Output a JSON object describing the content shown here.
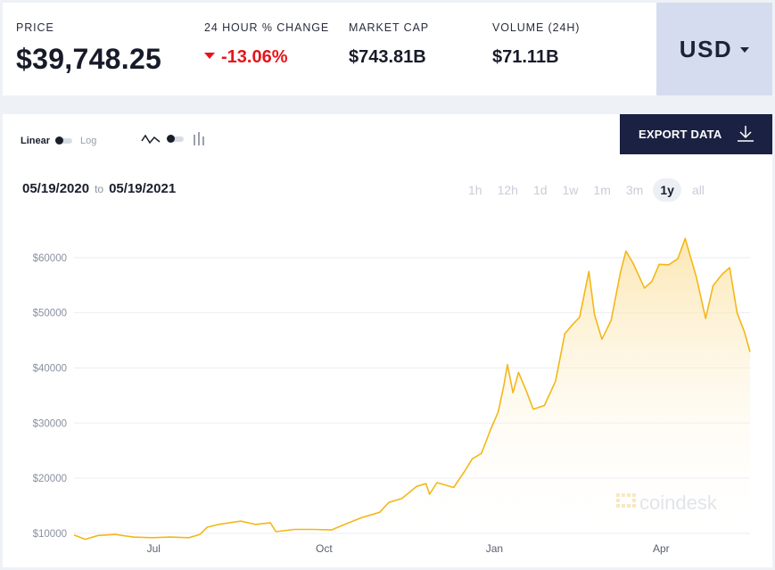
{
  "stats": {
    "price": {
      "label": "PRICE",
      "value": "$39,748.25"
    },
    "change": {
      "label": "24 HOUR % CHANGE",
      "value": "-13.06%"
    },
    "market_cap": {
      "label": "MARKET CAP",
      "value": "$743.81B"
    },
    "volume": {
      "label": "VOLUME (24H)",
      "value": "$71.11B"
    }
  },
  "currency": {
    "selected": "USD"
  },
  "controls": {
    "scale_linear": "Linear",
    "scale_log": "Log",
    "export_label": "EXPORT DATA",
    "range_start": "05/19/2020",
    "range_to": "to",
    "range_end": "05/19/2021",
    "periods": [
      "1h",
      "12h",
      "1d",
      "1w",
      "1m",
      "3m",
      "1y",
      "all"
    ],
    "active_period": "1y"
  },
  "watermark": "coindesk",
  "colors": {
    "line": "#f4b718",
    "accent_red": "#e5151b",
    "export_bg": "#1a2142",
    "currency_bg": "#d6dcf0"
  },
  "chart_data": {
    "type": "area",
    "ylim": [
      9000,
      65000
    ],
    "y_ticks": [
      10000,
      20000,
      30000,
      40000,
      50000,
      60000
    ],
    "y_tick_labels": [
      "$10000",
      "$20000",
      "$30000",
      "$40000",
      "$50000",
      "$60000"
    ],
    "x_ticks": [
      {
        "label": "Jul",
        "date": "2020-07-01"
      },
      {
        "label": "Oct",
        "date": "2020-10-01"
      },
      {
        "label": "Jan",
        "date": "2021-01-01"
      },
      {
        "label": "Apr",
        "date": "2021-04-01"
      }
    ],
    "x_range": [
      "2020-05-19",
      "2021-05-19"
    ],
    "series": [
      {
        "points": [
          [
            "2020-05-19",
            9700
          ],
          [
            "2020-05-25",
            8900
          ],
          [
            "2020-06-01",
            9600
          ],
          [
            "2020-06-06",
            9700
          ],
          [
            "2020-06-10",
            9800
          ],
          [
            "2020-06-20",
            9300
          ],
          [
            "2020-06-30",
            9200
          ],
          [
            "2020-07-10",
            9300
          ],
          [
            "2020-07-20",
            9200
          ],
          [
            "2020-07-26",
            9800
          ],
          [
            "2020-07-30",
            11100
          ],
          [
            "2020-08-05",
            11600
          ],
          [
            "2020-08-17",
            12200
          ],
          [
            "2020-08-25",
            11600
          ],
          [
            "2020-09-02",
            11900
          ],
          [
            "2020-09-05",
            10300
          ],
          [
            "2020-09-15",
            10700
          ],
          [
            "2020-09-25",
            10700
          ],
          [
            "2020-10-05",
            10600
          ],
          [
            "2020-10-10",
            11300
          ],
          [
            "2020-10-21",
            12800
          ],
          [
            "2020-10-31",
            13800
          ],
          [
            "2020-11-05",
            15600
          ],
          [
            "2020-11-12",
            16300
          ],
          [
            "2020-11-20",
            18500
          ],
          [
            "2020-11-25",
            19000
          ],
          [
            "2020-11-27",
            17100
          ],
          [
            "2020-12-01",
            19200
          ],
          [
            "2020-12-10",
            18300
          ],
          [
            "2020-12-16",
            21300
          ],
          [
            "2020-12-20",
            23500
          ],
          [
            "2020-12-25",
            24500
          ],
          [
            "2020-12-30",
            28900
          ],
          [
            "2021-01-03",
            32000
          ],
          [
            "2021-01-06",
            36700
          ],
          [
            "2021-01-08",
            40600
          ],
          [
            "2021-01-11",
            35500
          ],
          [
            "2021-01-14",
            39200
          ],
          [
            "2021-01-18",
            36000
          ],
          [
            "2021-01-22",
            32500
          ],
          [
            "2021-01-28",
            33200
          ],
          [
            "2021-02-03",
            37600
          ],
          [
            "2021-02-08",
            46200
          ],
          [
            "2021-02-12",
            47800
          ],
          [
            "2021-02-16",
            49200
          ],
          [
            "2021-02-21",
            57500
          ],
          [
            "2021-02-24",
            49700
          ],
          [
            "2021-02-28",
            45200
          ],
          [
            "2021-03-05",
            48600
          ],
          [
            "2021-03-10",
            57300
          ],
          [
            "2021-03-13",
            61200
          ],
          [
            "2021-03-17",
            58900
          ],
          [
            "2021-03-23",
            54500
          ],
          [
            "2021-03-27",
            55700
          ],
          [
            "2021-03-31",
            58800
          ],
          [
            "2021-04-05",
            58700
          ],
          [
            "2021-04-10",
            59800
          ],
          [
            "2021-04-14",
            63500
          ],
          [
            "2021-04-17",
            60000
          ],
          [
            "2021-04-20",
            56500
          ],
          [
            "2021-04-25",
            49000
          ],
          [
            "2021-04-29",
            54900
          ],
          [
            "2021-05-04",
            57000
          ],
          [
            "2021-05-08",
            58200
          ],
          [
            "2021-05-12",
            50000
          ],
          [
            "2021-05-16",
            46500
          ],
          [
            "2021-05-19",
            42900
          ]
        ]
      }
    ]
  }
}
